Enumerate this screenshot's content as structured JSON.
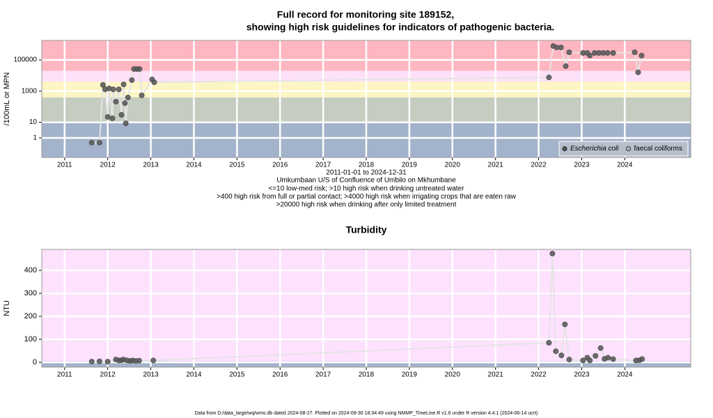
{
  "chart_data": [
    {
      "type": "line",
      "title": "Full record for monitoring site 189152,",
      "subtitle": "showing high risk guidelines for indicators of pathogenic bacteria.",
      "y_label": "/100mL or MPN",
      "x_label": "2011-01-01 to 2024-12-31",
      "notes": [
        "Umkumbaan U/S of Confluence of Umbilo on Mkhumbane",
        "<=10 low-med risk; >10 high risk when drinking untreated water",
        ">400 high risk from full or partial contact; >4000 high risk when irrigating crops that are eaten raw",
        ">20000 high risk when drinking after only limited treatment"
      ],
      "log_y": true,
      "grid": true,
      "legend": "bottom-right",
      "thresholds": [
        10,
        400,
        4000,
        20000
      ],
      "band_colors": [
        "#a3b3cb",
        "#c5cdc1",
        "#fdf5c3",
        "#fde1f8",
        "#feb6c1"
      ],
      "xlim": [
        2010.47,
        2025.53
      ],
      "xticks": [
        2011,
        2012,
        2013,
        2014,
        2015,
        2016,
        2017,
        2018,
        2019,
        2020,
        2021,
        2022,
        2023,
        2024
      ],
      "ylim": [
        0.056,
        1780000
      ],
      "yticks": [
        1,
        10,
        1000,
        100000
      ],
      "series": [
        {
          "name": "Escherichia coli",
          "color": "#555555",
          "marker": "filled",
          "x": [
            2011.63,
            2011.81,
            2011.89,
            2011.94,
            2012.0,
            2012.03,
            2012.11,
            2012.13,
            2012.19,
            2012.26,
            2012.32,
            2012.37,
            2012.4,
            2012.42,
            2012.47,
            2012.56,
            2012.61,
            2012.68,
            2012.74,
            2012.79,
            2013.03,
            2013.08,
            2022.24,
            2022.34,
            2022.42,
            2022.52,
            2022.63,
            2022.71,
            2023.03,
            2023.13,
            2023.19,
            2023.3,
            2023.4,
            2023.5,
            2023.6,
            2023.73,
            2024.23,
            2024.31,
            2024.39
          ],
          "values": [
            0.5,
            0.5,
            2500,
            1300,
            22,
            1500,
            18,
            1300,
            210,
            1300,
            30,
            2700,
            170,
            8.6,
            390,
            5100,
            26000,
            26000,
            26000,
            530,
            5600,
            3700,
            7600,
            780000,
            630000,
            630000,
            40000,
            310000,
            280000,
            280000,
            190000,
            280000,
            280000,
            280000,
            280000,
            280000,
            310000,
            16000,
            190000
          ]
        },
        {
          "name": "faecal coliforms",
          "color": "#555555",
          "marker": "hollow",
          "x": [],
          "values": []
        }
      ]
    },
    {
      "type": "line",
      "title": "Turbidity",
      "y_label": "NTU",
      "grid": true,
      "thresholds": [
        5
      ],
      "band_colors": [
        "#a3b3cb",
        "#fde1fd"
      ],
      "xlim": [
        2010.47,
        2025.53
      ],
      "xticks": [
        2011,
        2012,
        2013,
        2014,
        2015,
        2016,
        2017,
        2018,
        2019,
        2020,
        2021,
        2022,
        2023,
        2024
      ],
      "ylim": [
        -21,
        491
      ],
      "yticks": [
        0,
        100,
        200,
        300,
        400
      ],
      "series": [
        {
          "name": "Turbidity",
          "color": "#555555",
          "marker": "filled",
          "x": [
            2011.63,
            2011.81,
            2012.0,
            2012.19,
            2012.26,
            2012.32,
            2012.37,
            2012.45,
            2012.52,
            2012.58,
            2012.65,
            2012.73,
            2013.06,
            2022.24,
            2022.32,
            2022.4,
            2022.53,
            2022.61,
            2022.71,
            2023.03,
            2023.13,
            2023.19,
            2023.32,
            2023.44,
            2023.53,
            2023.61,
            2023.73,
            2024.26,
            2024.34,
            2024.4
          ],
          "values": [
            3,
            4,
            3,
            12,
            8,
            9,
            12,
            8,
            6,
            8,
            6,
            7,
            8,
            85,
            473,
            48,
            30,
            165,
            12,
            8,
            20,
            8,
            28,
            62,
            15,
            20,
            14,
            8,
            9,
            14
          ]
        }
      ]
    }
  ],
  "footer": "Data from D:/data_large/wq/wms.db dated 2024-08-27. Plotted on 2024-09-30 18:34:49 using NMMP_TimeLine.R v1.6 under R version 4.4.1 (2024-06-14 ucrt)"
}
